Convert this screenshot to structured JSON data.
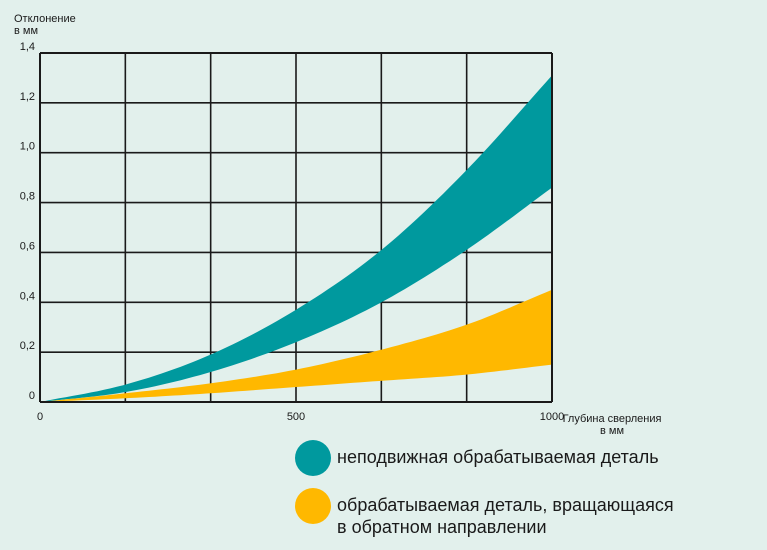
{
  "chart_data": {
    "type": "area",
    "ylabel": "Отклонение\nв мм",
    "xlabel": "Глубина сверления\nв мм",
    "xlim": [
      0,
      1000
    ],
    "ylim": [
      0,
      1.4
    ],
    "x_ticks": [
      "0",
      "500",
      "1000"
    ],
    "y_ticks": [
      "0",
      "0,2",
      "0,4",
      "0,6",
      "0,8",
      "1,0",
      "1,2",
      "1,4"
    ],
    "grid": true,
    "series": [
      {
        "name": "неподвижная обрабатываемая деталь",
        "color": "#00999e",
        "x": [
          0,
          167,
          333,
          500,
          667,
          833,
          1000
        ],
        "upper": [
          0,
          0.07,
          0.19,
          0.37,
          0.61,
          0.93,
          1.31
        ],
        "lower": [
          0,
          0.04,
          0.12,
          0.24,
          0.4,
          0.61,
          0.86
        ]
      },
      {
        "name": "обрабатываемая деталь, вращающаяся\nв обратном направлении",
        "color": "#ffb800",
        "x": [
          0,
          167,
          333,
          500,
          667,
          833,
          1000
        ],
        "upper": [
          0,
          0.035,
          0.075,
          0.13,
          0.21,
          0.31,
          0.45
        ],
        "lower": [
          0,
          0.015,
          0.035,
          0.06,
          0.085,
          0.11,
          0.15
        ]
      }
    ]
  },
  "legend": {
    "items": [
      {
        "label": "неподвижная обрабатываемая деталь",
        "color": "#00999e"
      },
      {
        "label": "обрабатываемая деталь, вращающаяся\nв обратном направлении",
        "color": "#ffb800"
      }
    ]
  }
}
